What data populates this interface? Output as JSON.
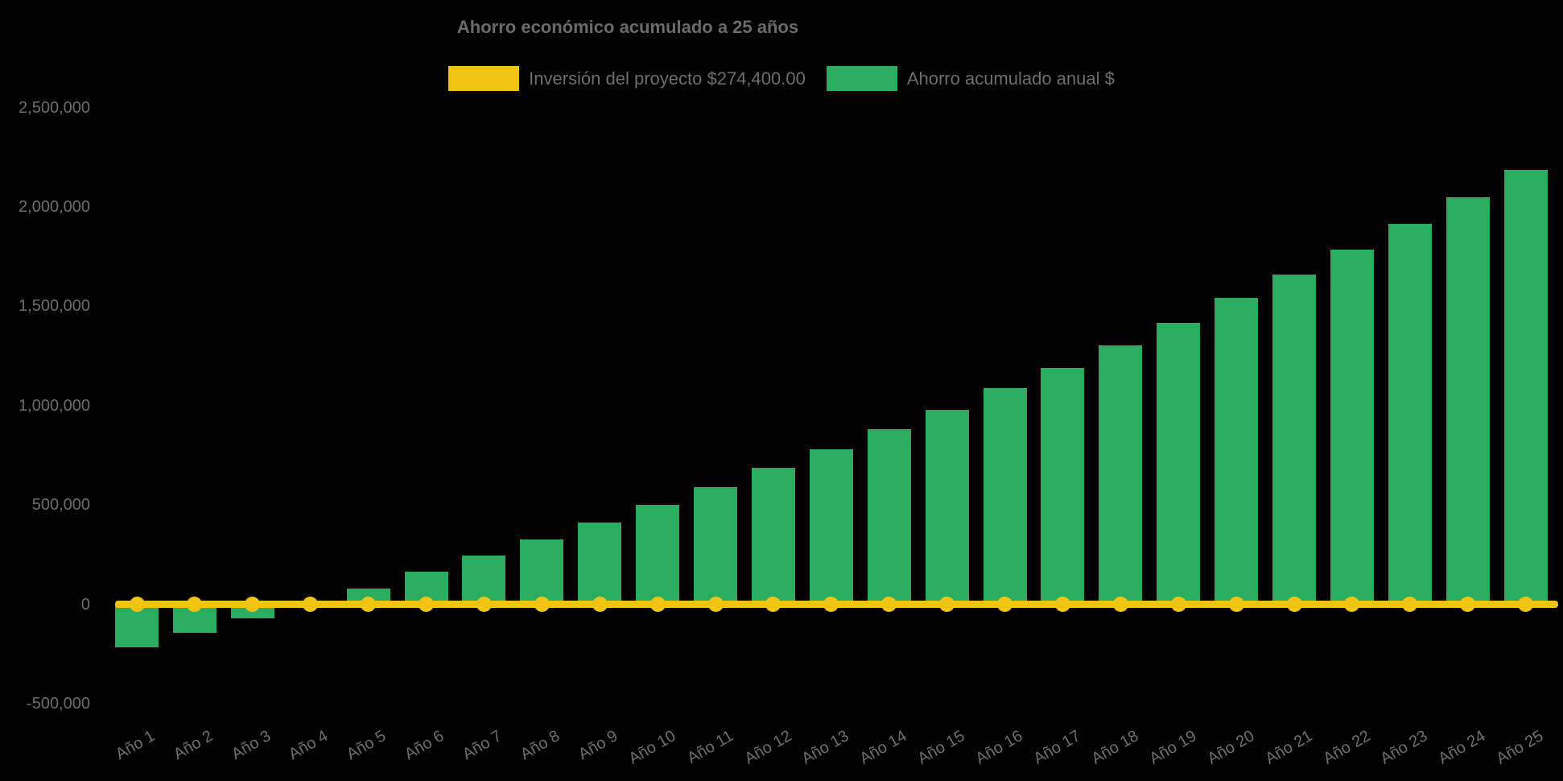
{
  "chart": {
    "title": "Ahorro económico acumulado a 25 años",
    "background_color": "#000000",
    "text_color": "#6e6e6e"
  },
  "legend": [
    {
      "label": "Inversión del proyecto $274,400.00",
      "color": "#F0C411"
    },
    {
      "label": "Ahorro acumulado anual $",
      "color": "#2BAD60"
    }
  ],
  "chart_data": {
    "type": "bar",
    "title": "Ahorro económico acumulado a 25 años",
    "categories": [
      "Año 1",
      "Año 2",
      "Año 3",
      "Año 4",
      "Año 5",
      "Año 6",
      "Año 7",
      "Año 8",
      "Año 9",
      "Año 10",
      "Año 11",
      "Año 12",
      "Año 13",
      "Año 14",
      "Año 15",
      "Año 16",
      "Año 17",
      "Año 18",
      "Año 19",
      "Año 20",
      "Año 21",
      "Año 22",
      "Año 23",
      "Año 24",
      "Año 25"
    ],
    "series": [
      {
        "name": "Ahorro acumulado anual $",
        "type": "bar",
        "color": "#2BAD60",
        "values": [
          -215000,
          -143000,
          -72000,
          2000,
          80000,
          165000,
          246000,
          327000,
          410000,
          500000,
          590000,
          685000,
          778000,
          880000,
          980000,
          1089000,
          1190000,
          1302000,
          1415000,
          1540000,
          1661000,
          1786000,
          1915000,
          2048000,
          2185000
        ]
      },
      {
        "name": "Inversión del proyecto $274,400.00",
        "type": "line",
        "color": "#F0C411",
        "investment_value": 274400,
        "plotted_constant": 0,
        "marker": "circle"
      }
    ],
    "y_ticks": [
      -500000,
      0,
      500000,
      1000000,
      1500000,
      2000000,
      2500000
    ],
    "ylim": [
      -500000,
      2500000
    ],
    "grid": false,
    "legend_position": "top",
    "x_label_rotation_deg": -30
  }
}
